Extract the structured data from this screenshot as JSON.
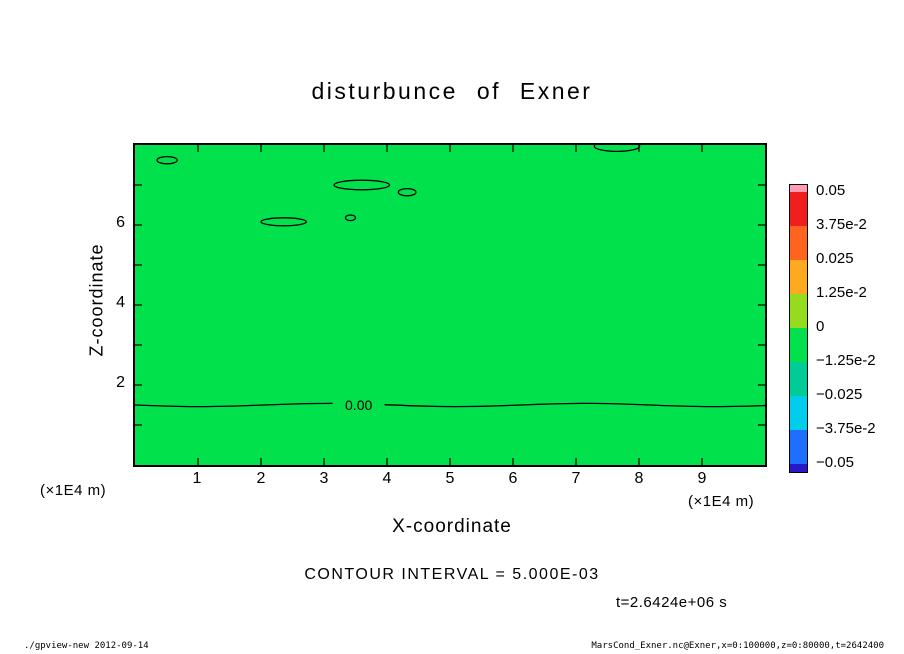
{
  "title": "disturbunce of Exner",
  "colors": {
    "background": "#ffffff",
    "frame": "#000000",
    "plot_fill": "#00e14b",
    "contour_line": "#000000"
  },
  "axes": {
    "x_label": "X-coordinate",
    "z_label": "Z-coordinate",
    "x_unit_left": "(×1E4 m)",
    "x_unit_right": "(×1E4 m)",
    "x_ticks": [
      "1",
      "2",
      "3",
      "4",
      "5",
      "6",
      "7",
      "8",
      "9"
    ],
    "z_ticks": [
      "6",
      "4",
      "2"
    ]
  },
  "colorbar": {
    "labels": [
      "0.05",
      "3.75e-2",
      "0.025",
      "1.25e-2",
      "0",
      "−1.25e-2",
      "−0.025",
      "−3.75e-2",
      "−0.05"
    ],
    "colors": [
      "#ff9bb4",
      "#f01e1e",
      "#ff641e",
      "#ffaa1e",
      "#96dc1e",
      "#00e14b",
      "#00cd96",
      "#00cdeb",
      "#1e6eff",
      "#2819c8"
    ]
  },
  "annotations": {
    "contour_interval": "CONTOUR INTERVAL = 5.000E-03",
    "time": "t=2.6424e+06 s",
    "zero_label": "0.00"
  },
  "footer": {
    "left": "./gpview-new  2012-09-14",
    "right": "MarsCond_Exner.nc@Exner,x=0:100000,z=0:80000,t=2642400"
  },
  "chart_data": {
    "type": "heatmap",
    "subtype": "filled-contour",
    "title": "disturbunce of Exner",
    "xlabel": "X-coordinate (×1E4 m)",
    "ylabel": "Z-coordinate (×1E4 m)",
    "x_range": [
      0,
      10
    ],
    "z_range": [
      0,
      8
    ],
    "x_ticks": [
      1,
      2,
      3,
      4,
      5,
      6,
      7,
      8,
      9
    ],
    "z_ticks": [
      2,
      4,
      6
    ],
    "contour_interval": 0.005,
    "time_s": 2642400,
    "colorbar_levels": [
      0.05,
      0.0375,
      0.025,
      0.0125,
      0,
      -0.0125,
      -0.025,
      -0.0375,
      -0.05
    ],
    "zero_contour": {
      "z": 1.5,
      "x_start": 0,
      "x_end": 10,
      "label": "0.00",
      "label_x": 3.55
    },
    "closed_contours": [
      {
        "x": 0.51,
        "z": 7.62,
        "rx": 0.16,
        "rz": 0.09
      },
      {
        "x": 2.36,
        "z": 6.08,
        "rx": 0.36,
        "rz": 0.1
      },
      {
        "x": 3.42,
        "z": 6.18,
        "rx": 0.08,
        "rz": 0.07
      },
      {
        "x": 3.6,
        "z": 7.0,
        "rx": 0.44,
        "rz": 0.12
      },
      {
        "x": 4.32,
        "z": 6.82,
        "rx": 0.14,
        "rz": 0.09
      },
      {
        "x": 7.65,
        "z": 7.97,
        "rx": 0.36,
        "rz": 0.13
      }
    ]
  }
}
